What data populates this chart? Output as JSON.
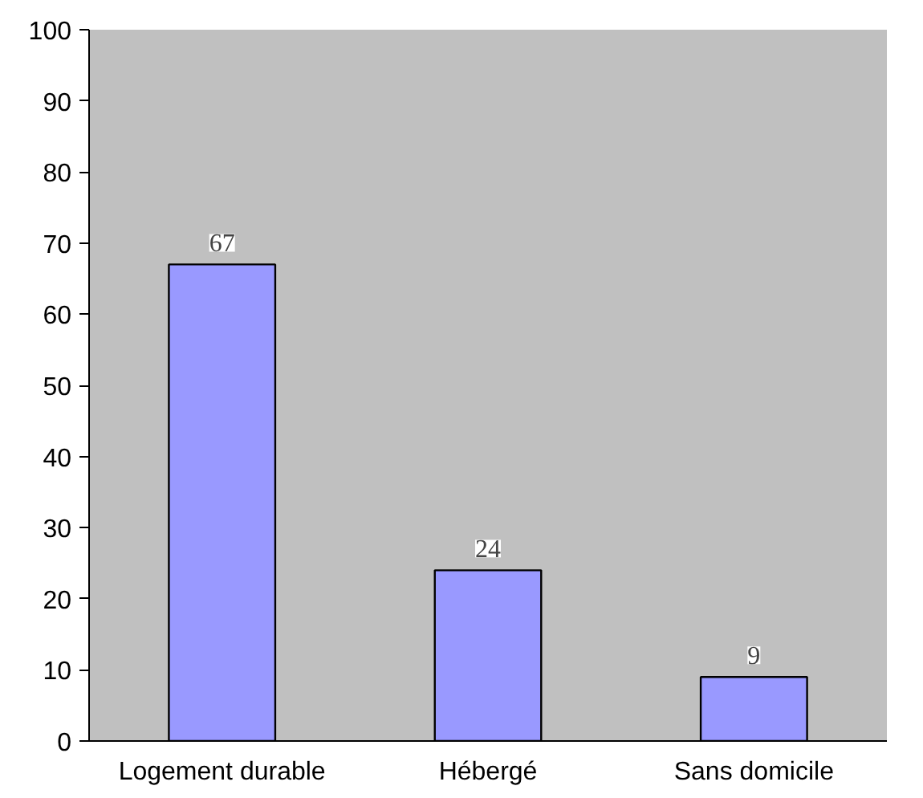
{
  "chart_data": {
    "type": "bar",
    "categories": [
      "Logement durable",
      "Hébergé",
      "Sans domicile"
    ],
    "values": [
      67,
      24,
      9
    ],
    "color": "#9999ff",
    "ylim": [
      0,
      100
    ],
    "yticks": [
      0,
      10,
      20,
      30,
      40,
      50,
      60,
      70,
      80,
      90,
      100
    ],
    "grid": false,
    "data_labels": true
  }
}
